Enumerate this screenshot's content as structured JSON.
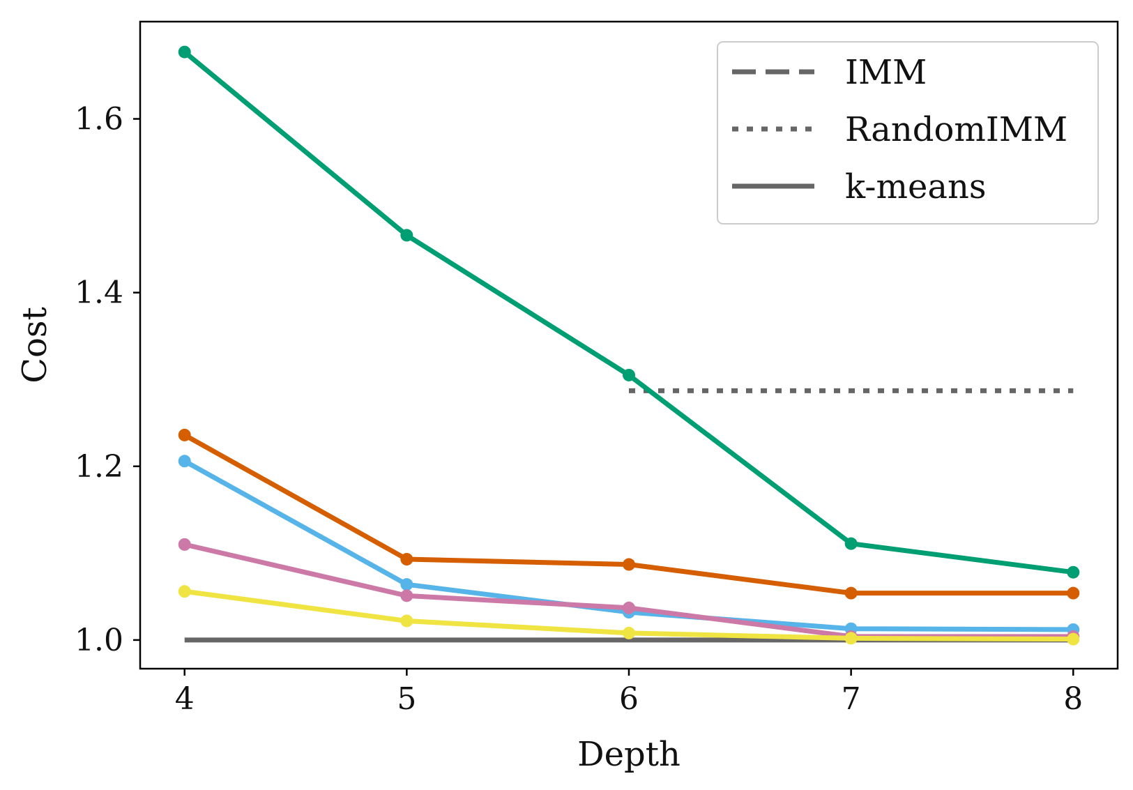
{
  "chart_data": {
    "type": "line",
    "xlabel": "Depth",
    "ylabel": "Cost",
    "x": [
      4,
      5,
      6,
      7,
      8
    ],
    "xticks": [
      "4",
      "5",
      "6",
      "7",
      "8"
    ],
    "yticks": [
      "1.0",
      "1.2",
      "1.4",
      "1.6"
    ],
    "xlim": [
      3.8,
      8.2
    ],
    "ylim": [
      0.967,
      1.712
    ],
    "grid": false,
    "legend_position": "top-right",
    "series": [
      {
        "color": "#009e73",
        "values": [
          1.677,
          1.466,
          1.305,
          1.111,
          1.078
        ]
      },
      {
        "color": "#d55e00",
        "values": [
          1.236,
          1.093,
          1.087,
          1.054,
          1.054
        ]
      },
      {
        "color": "#56b4e9",
        "values": [
          1.206,
          1.064,
          1.032,
          1.013,
          1.012
        ]
      },
      {
        "color": "#cc79a7",
        "values": [
          1.11,
          1.051,
          1.037,
          1.004,
          1.004
        ]
      },
      {
        "color": "#f0e442",
        "values": [
          1.056,
          1.022,
          1.008,
          1.002,
          1.001
        ]
      }
    ],
    "reference_lines": [
      {
        "name": "IMM",
        "style": "dashed",
        "color": "#666666",
        "x": [
          4,
          8
        ],
        "values": [
          null,
          null
        ]
      },
      {
        "name": "RandomIMM",
        "style": "dotted",
        "color": "#666666",
        "x": [
          6,
          8
        ],
        "values": [
          1.287,
          1.287
        ]
      },
      {
        "name": "k-means",
        "style": "solid",
        "color": "#666666",
        "x": [
          4,
          8
        ],
        "values": [
          1.0,
          1.0
        ]
      }
    ]
  }
}
